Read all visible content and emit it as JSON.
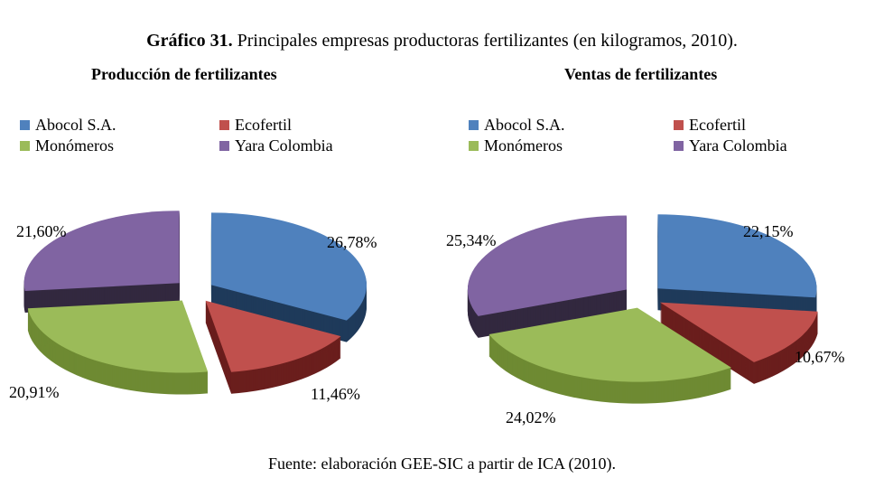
{
  "title_bold": "Gráfico 31.",
  "title_rest": " Principales empresas productoras fertilizantes (en kilogramos, 2010).",
  "source": "Fuente: elaboración GEE-SIC a partir de ICA (2010).",
  "chart_data": [
    {
      "type": "pie",
      "title": "Producción de fertilizantes",
      "categories": [
        "Abocol S.A.",
        "Ecofertil",
        "Monómeros",
        "Yara Colombia"
      ],
      "values": [
        26.78,
        11.46,
        20.91,
        21.6
      ],
      "labels": [
        "26,78%",
        "11,46%",
        "20,91%",
        "21,60%"
      ],
      "colors": [
        "#4F81BD",
        "#C0504D",
        "#9BBB59",
        "#8064A2"
      ],
      "legend": "top"
    },
    {
      "type": "pie",
      "title": "Ventas de fertilizantes",
      "categories": [
        "Abocol S.A.",
        "Ecofertil",
        "Monómeros",
        "Yara Colombia"
      ],
      "values": [
        22.15,
        10.67,
        24.02,
        25.34
      ],
      "labels": [
        "22,15%",
        "10,67%",
        "24,02%",
        "25,34%"
      ],
      "colors": [
        "#4F81BD",
        "#C0504D",
        "#9BBB59",
        "#8064A2"
      ],
      "legend": "top"
    }
  ],
  "side_colors": [
    "#1F3A5A",
    "#6A1E1D",
    "#6E8A33",
    "#32283F"
  ]
}
